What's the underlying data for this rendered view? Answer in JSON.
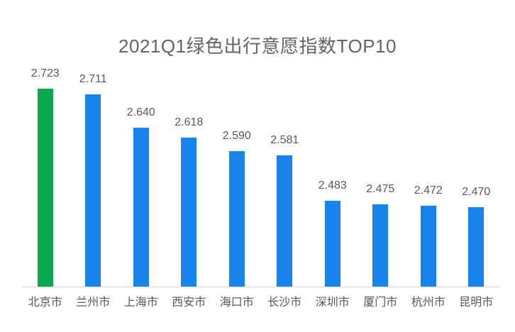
{
  "page": {
    "background_color": "#ffffff"
  },
  "chart_data": {
    "type": "bar",
    "title": "2021Q1绿色出行意愿指数TOP10",
    "title_color": "#646464",
    "categories": [
      "北京市",
      "兰州市",
      "上海市",
      "西安市",
      "海口市",
      "长沙市",
      "深圳市",
      "厦门市",
      "杭州市",
      "昆明市"
    ],
    "values": [
      2.723,
      2.711,
      2.64,
      2.618,
      2.59,
      2.581,
      2.483,
      2.475,
      2.472,
      2.47
    ],
    "value_labels": [
      "2.723",
      "2.711",
      "2.640",
      "2.618",
      "2.590",
      "2.581",
      "2.483",
      "2.475",
      "2.472",
      "2.470"
    ],
    "bar_colors": [
      "#0ca84f",
      "#1983ec",
      "#1983ec",
      "#1983ec",
      "#1983ec",
      "#1983ec",
      "#1983ec",
      "#1983ec",
      "#1983ec",
      "#1983ec"
    ],
    "highlight_color": "#0ca84f",
    "default_bar_color": "#1983ec",
    "label_color": "#595959",
    "axis_line_color": "#d9d9d9",
    "xlabel": "",
    "ylabel": "",
    "ylim": [
      2.3,
      2.775
    ],
    "grid": false,
    "legend": null,
    "data_labels_visible": true
  }
}
